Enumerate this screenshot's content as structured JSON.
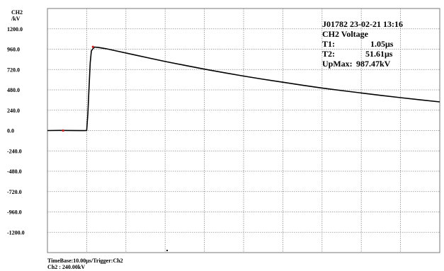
{
  "colors": {
    "background": "#ffffff",
    "grid": "#8c8c8c",
    "trace": "#000000",
    "marker": "#cc2222"
  },
  "chart_data": {
    "type": "line",
    "title": "",
    "ylabel_line1": "CH2",
    "ylabel_line2": "/kV",
    "y_ticks": [
      1200.0,
      960.0,
      720.0,
      480.0,
      240.0,
      0.0,
      -240.0,
      -480.0,
      -720.0,
      -960.0,
      -1200.0
    ],
    "y_tick_labels": [
      "1200.0",
      "960.0",
      "720.0",
      "480.0",
      "240.0",
      "0.0",
      "-240.0",
      "-480.0",
      "-720.0",
      "-960.0",
      "-1200.0"
    ],
    "ylim": [
      -1440,
      1440
    ],
    "x_unit": "us",
    "x_range": [
      0,
      100
    ],
    "x_divisions": 10,
    "grid": true,
    "series": [
      {
        "points": [
          [
            0,
            0
          ],
          [
            3,
            2
          ],
          [
            6,
            1
          ],
          [
            9,
            -1
          ],
          [
            10,
            0
          ],
          [
            10.3,
            200
          ],
          [
            10.6,
            500
          ],
          [
            10.9,
            800
          ],
          [
            11.2,
            940
          ],
          [
            11.5,
            960
          ],
          [
            12,
            985
          ],
          [
            13,
            980
          ],
          [
            15,
            965
          ],
          [
            18,
            935
          ],
          [
            22,
            895
          ],
          [
            26,
            855
          ],
          [
            30,
            815
          ],
          [
            35,
            770
          ],
          [
            40,
            725
          ],
          [
            45,
            683
          ],
          [
            50,
            643
          ],
          [
            55,
            605
          ],
          [
            60,
            570
          ],
          [
            65,
            535
          ],
          [
            70,
            502
          ],
          [
            75,
            472
          ],
          [
            80,
            443
          ],
          [
            85,
            415
          ],
          [
            90,
            388
          ],
          [
            95,
            362
          ],
          [
            100,
            338
          ]
        ]
      }
    ],
    "markers": [
      {
        "x": 4,
        "y": 0
      },
      {
        "x": 11.6,
        "y": 987
      }
    ]
  },
  "info": {
    "header": "J01782  23-02-21 13:16",
    "channel": "CH2 Voltage",
    "t1_label": "T1:",
    "t1_value": "1.05μs",
    "t2_label": "T2:",
    "t2_value": "51.61μs",
    "upmax_label": "UpMax:",
    "upmax_value": "987.47kV"
  },
  "footer": {
    "timebase": "TimeBase:10.00μs/Trigger:Ch2",
    "channel_scale": "Ch2 :   240.00kV"
  }
}
